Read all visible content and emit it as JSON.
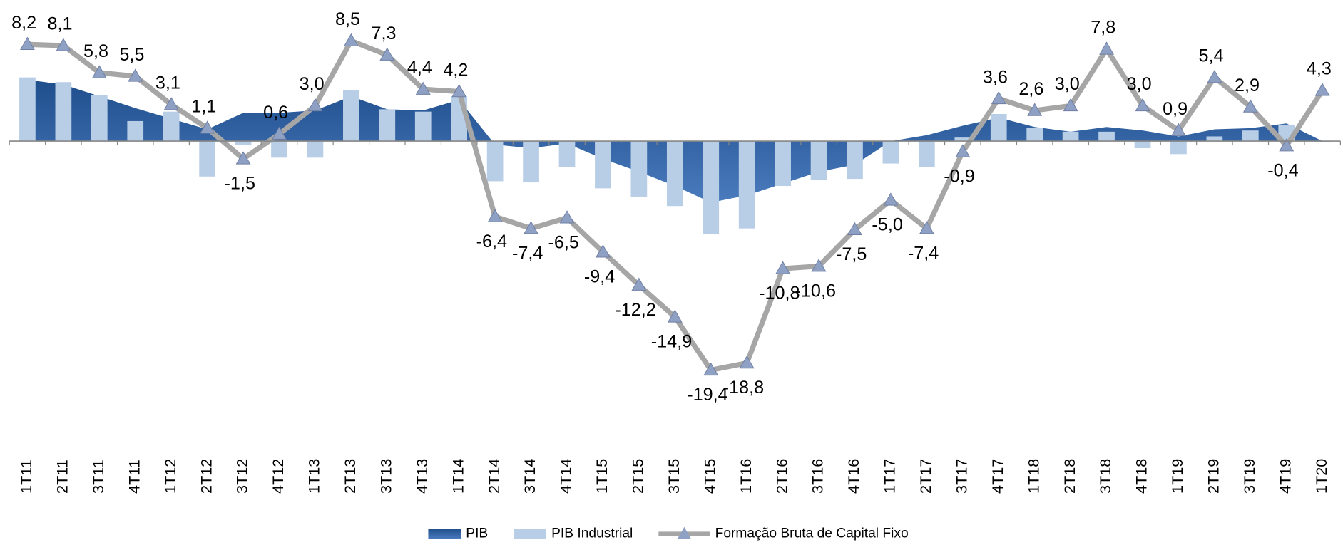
{
  "chart_data": {
    "type": "combo",
    "categories": [
      "1T11",
      "2T11",
      "3T11",
      "4T11",
      "1T12",
      "2T12",
      "3T12",
      "4T12",
      "1T13",
      "2T13",
      "3T13",
      "4T13",
      "1T14",
      "2T14",
      "3T14",
      "4T14",
      "1T15",
      "2T15",
      "3T15",
      "4T15",
      "1T16",
      "2T16",
      "3T16",
      "4T16",
      "1T17",
      "2T17",
      "3T17",
      "4T17",
      "1T18",
      "2T18",
      "3T18",
      "4T18",
      "1T19",
      "2T19",
      "3T19",
      "4T19",
      "1T20"
    ],
    "ylim": [
      -24,
      10
    ],
    "legend": "bottom",
    "series": [
      {
        "name": "PIB",
        "type": "area",
        "color": "#2e5c9a",
        "values": [
          5.2,
          4.8,
          3.8,
          2.8,
          1.9,
          1.0,
          2.4,
          2.4,
          2.6,
          3.8,
          2.7,
          2.6,
          3.5,
          -0.3,
          -0.6,
          -0.2,
          -1.5,
          -2.6,
          -3.8,
          -5.2,
          -4.6,
          -3.6,
          -2.6,
          -2.0,
          0.0,
          0.5,
          1.3,
          2.0,
          1.2,
          0.8,
          1.2,
          0.9,
          0.4,
          1.0,
          1.1,
          1.5,
          0.0
        ]
      },
      {
        "name": "PIB Industrial",
        "type": "bar",
        "color": "#b8cde6",
        "values": [
          5.4,
          5.0,
          3.9,
          1.7,
          2.5,
          -3.0,
          -0.3,
          -1.4,
          -1.4,
          4.3,
          2.7,
          2.5,
          3.8,
          -3.4,
          -3.5,
          -2.2,
          -4.0,
          -4.7,
          -5.5,
          -7.9,
          -7.4,
          -3.8,
          -3.3,
          -3.2,
          -1.9,
          -2.2,
          0.3,
          2.3,
          1.1,
          0.8,
          0.8,
          -0.6,
          -1.1,
          0.4,
          0.9,
          1.4,
          -0.1
        ]
      },
      {
        "name": "Formação Bruta de Capital Fixo",
        "type": "line",
        "color": "#a6a6a6",
        "marker_color": "#8ea0c4",
        "values": [
          8.2,
          8.1,
          5.8,
          5.5,
          3.1,
          1.1,
          -1.5,
          0.6,
          3.0,
          8.5,
          7.3,
          4.4,
          4.2,
          -6.4,
          -7.4,
          -6.5,
          -9.4,
          -12.2,
          -14.9,
          -19.4,
          -18.8,
          -10.8,
          -10.6,
          -7.5,
          -5.0,
          -7.4,
          -0.9,
          3.6,
          2.6,
          3.0,
          7.8,
          3.0,
          0.9,
          5.4,
          2.9,
          -0.4,
          4.3
        ],
        "value_labels": [
          "8,2",
          "8,1",
          "5,8",
          "5,5",
          "3,1",
          "1,1",
          "-1,5",
          "0,6",
          "3,0",
          "8,5",
          "7,3",
          "4,4",
          "4,2",
          "-6,4",
          "-7,4",
          "-6,5",
          "-9,4",
          "-12,2",
          "-14,9",
          "-19,4",
          "-18,8",
          "-10,8",
          "-10,6",
          "-7,5",
          "-5,0",
          "-7,4",
          "-0,9",
          "3,6",
          "2,6",
          "3,0",
          "7,8",
          "3,0",
          "0,9",
          "5,4",
          "2,9",
          "-0,4",
          "4,3"
        ]
      }
    ]
  }
}
